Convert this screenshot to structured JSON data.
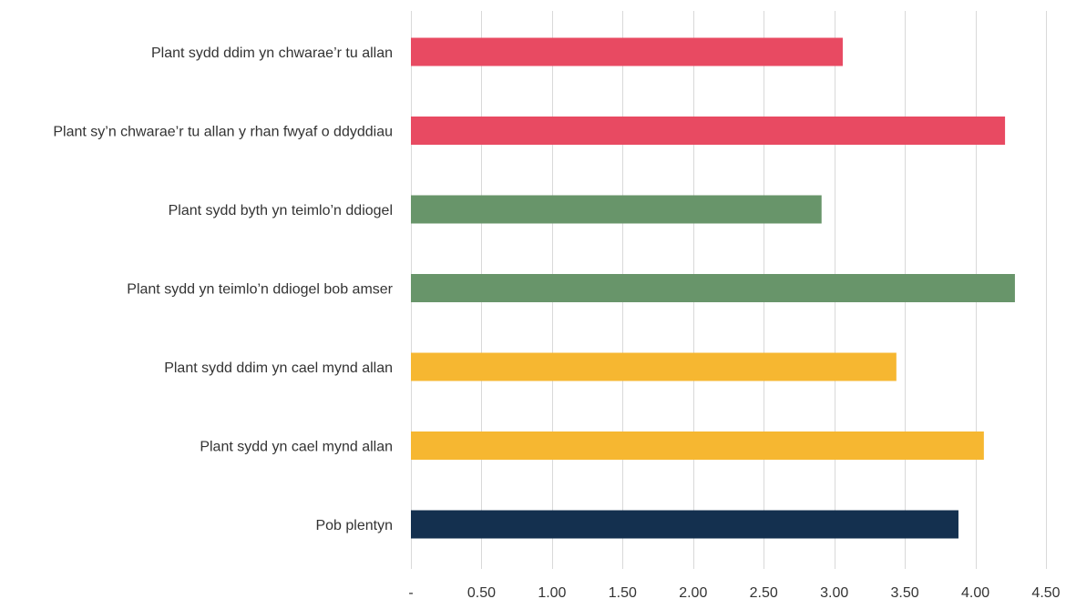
{
  "chart_data": {
    "type": "bar",
    "orientation": "horizontal",
    "title": "",
    "xlabel": "",
    "ylabel": "",
    "xlim": [
      0,
      4.5
    ],
    "grid": true,
    "legend": "none",
    "x_ticks": [
      "-",
      "0.50",
      "1.00",
      "1.50",
      "2.00",
      "2.50",
      "3.00",
      "3.50",
      "4.00",
      "4.50"
    ],
    "x_tick_values": [
      0,
      0.5,
      1.0,
      1.5,
      2.0,
      2.5,
      3.0,
      3.5,
      4.0,
      4.5
    ],
    "categories": [
      "Plant sydd ddim yn chwarae’r tu allan",
      "Plant sy’n chwarae’r tu allan y rhan fwyaf o ddyddiau",
      "Plant sydd byth yn teimlo’n ddiogel",
      "Plant sydd yn teimlo’n ddiogel bob amser",
      "Plant sydd ddim yn cael mynd allan",
      "Plant sydd yn cael mynd allan",
      "Pob plentyn"
    ],
    "values": [
      3.06,
      4.21,
      2.91,
      4.28,
      3.44,
      4.06,
      3.88
    ],
    "colors": [
      "#e84a62",
      "#e84a62",
      "#68956a",
      "#68956a",
      "#f6b731",
      "#f6b731",
      "#14304f"
    ]
  }
}
